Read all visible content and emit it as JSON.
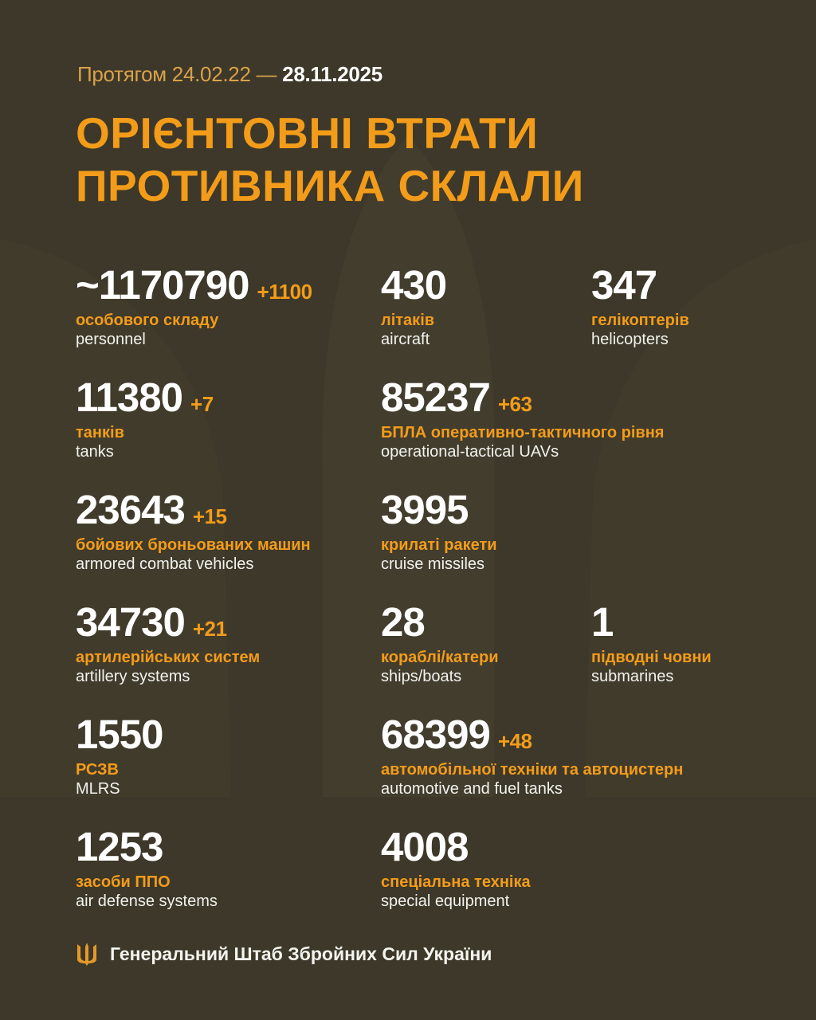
{
  "header": {
    "period_prefix": "Протягом 24.02.22 —",
    "period_end": "28.11.2025",
    "title_line1": "ОРІЄНТОВНІ ВТРАТИ",
    "title_line2": "ПРОТИВНИКА СКЛАЛИ"
  },
  "stats": [
    {
      "value": "~1170790",
      "delta": "+1100",
      "ua": "особового складу",
      "en": "personnel"
    },
    {
      "value": "430",
      "delta": "",
      "ua": "літаків",
      "en": "aircraft"
    },
    {
      "value": "347",
      "delta": "",
      "ua": "гелікоптерів",
      "en": "helicopters"
    },
    {
      "value": "11380",
      "delta": "+7",
      "ua": "танків",
      "en": "tanks"
    },
    {
      "value": "85237",
      "delta": "+63",
      "ua": "БПЛА оперативно-тактичного рівня",
      "en": "operational-tactical UAVs"
    },
    {
      "value": "23643",
      "delta": "+15",
      "ua": "бойових броньованих машин",
      "en": "armored combat vehicles"
    },
    {
      "value": "3995",
      "delta": "",
      "ua": "крилаті ракети",
      "en": "cruise missiles"
    },
    {
      "value": "34730",
      "delta": "+21",
      "ua": "артилерійських систем",
      "en": "artillery systems"
    },
    {
      "value": "28",
      "delta": "",
      "ua": "кораблі/катери",
      "en": "ships/boats"
    },
    {
      "value": "1",
      "delta": "",
      "ua": "підводні човни",
      "en": "submarines"
    },
    {
      "value": "1550",
      "delta": "",
      "ua": "РСЗВ",
      "en": "MLRS"
    },
    {
      "value": "68399",
      "delta": "+48",
      "ua": "автомобільної техніки та автоцистерн",
      "en": "automotive and fuel tanks"
    },
    {
      "value": "1253",
      "delta": "",
      "ua": "засоби ППО",
      "en": "air defense systems"
    },
    {
      "value": "4008",
      "delta": "",
      "ua": "спеціальна техніка",
      "en": "special equipment"
    }
  ],
  "footer": {
    "text": "Генеральний Штаб Збройних Сил України",
    "icon": "trident-icon"
  },
  "colors": {
    "background": "#3d3829",
    "accent": "#f39c1a",
    "text": "#ffffff"
  }
}
